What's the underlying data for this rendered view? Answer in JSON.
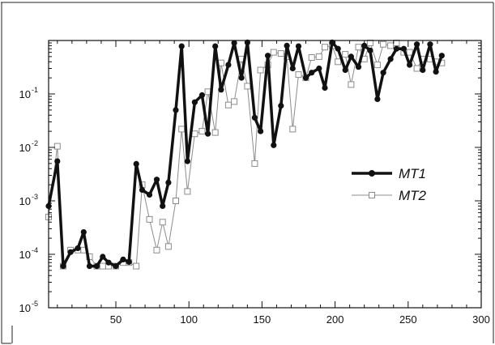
{
  "chart_data": {
    "type": "line",
    "title": "",
    "xlabel": "",
    "ylabel": "",
    "xlim": [
      4,
      300
    ],
    "ylim": [
      1e-05,
      1
    ],
    "yscale": "log",
    "grid": false,
    "legend_position": "center-right",
    "x_ticks": [
      {
        "value": 50,
        "label": "50"
      },
      {
        "value": 100,
        "label": "100"
      },
      {
        "value": 150,
        "label": "150"
      },
      {
        "value": 200,
        "label": "200"
      },
      {
        "value": 250,
        "label": "250"
      },
      {
        "value": 300,
        "label": "300"
      }
    ],
    "y_ticks": [
      {
        "value": 1e-05,
        "base": "10",
        "exp": "-5"
      },
      {
        "value": 0.0001,
        "base": "10",
        "exp": "-4"
      },
      {
        "value": 0.001,
        "base": "10",
        "exp": "-3"
      },
      {
        "value": 0.01,
        "base": "10",
        "exp": "-2"
      },
      {
        "value": 0.1,
        "base": "10",
        "exp": "-1"
      }
    ],
    "series": [
      {
        "name": "MT1",
        "color": "#111111",
        "marker": "filled-circle",
        "points": [
          [
            4,
            0.0008
          ],
          [
            10,
            0.0055
          ],
          [
            14,
            6e-05
          ],
          [
            19,
            0.00011
          ],
          [
            24,
            0.00013
          ],
          [
            28,
            0.00026
          ],
          [
            32,
            6e-05
          ],
          [
            37,
            6e-05
          ],
          [
            41,
            9e-05
          ],
          [
            45,
            7e-05
          ],
          [
            50,
            6e-05
          ],
          [
            55,
            8e-05
          ],
          [
            59,
            7.2e-05
          ],
          [
            64,
            0.0049
          ],
          [
            68,
            0.0016
          ],
          [
            73,
            0.0013
          ],
          [
            78,
            0.0025
          ],
          [
            82,
            0.0008
          ],
          [
            86,
            0.0022
          ],
          [
            91,
            0.05
          ],
          [
            95,
            0.78
          ],
          [
            99,
            0.0055
          ],
          [
            104,
            0.07
          ],
          [
            109,
            0.095
          ],
          [
            113,
            0.018
          ],
          [
            118,
            0.78
          ],
          [
            122,
            0.12
          ],
          [
            127,
            0.35
          ],
          [
            131,
            0.9
          ],
          [
            136,
            0.2
          ],
          [
            140,
            0.92
          ],
          [
            145,
            0.036
          ],
          [
            149,
            0.02
          ],
          [
            154,
            0.52
          ],
          [
            158,
            0.011
          ],
          [
            163,
            0.06
          ],
          [
            167,
            0.8
          ],
          [
            171,
            0.3
          ],
          [
            175,
            0.78
          ],
          [
            180,
            0.2
          ],
          [
            184,
            0.25
          ],
          [
            189,
            0.3
          ],
          [
            193,
            0.13
          ],
          [
            198,
            0.92
          ],
          [
            202,
            0.7
          ],
          [
            207,
            0.28
          ],
          [
            211,
            0.5
          ],
          [
            216,
            0.32
          ],
          [
            220,
            0.8
          ],
          [
            224,
            0.65
          ],
          [
            229,
            0.08
          ],
          [
            233,
            0.25
          ],
          [
            238,
            0.45
          ],
          [
            242,
            0.7
          ],
          [
            247,
            0.7
          ],
          [
            251,
            0.35
          ],
          [
            256,
            0.85
          ],
          [
            260,
            0.28
          ],
          [
            265,
            0.85
          ],
          [
            269,
            0.26
          ],
          [
            273,
            0.52
          ]
        ]
      },
      {
        "name": "MT2",
        "color": "#8c8c8c",
        "marker": "open-square",
        "points": [
          [
            4,
            0.0005
          ],
          [
            10,
            0.0105
          ],
          [
            14,
            6e-05
          ],
          [
            19,
            0.00012
          ],
          [
            24,
            0.00012
          ],
          [
            28,
            0.00012
          ],
          [
            32,
            9e-05
          ],
          [
            37,
            6e-05
          ],
          [
            41,
            6e-05
          ],
          [
            45,
            6e-05
          ],
          [
            50,
            6e-05
          ],
          [
            55,
            7e-05
          ],
          [
            59,
            7e-05
          ],
          [
            64,
            6e-05
          ],
          [
            68,
            0.002
          ],
          [
            73,
            0.00045
          ],
          [
            78,
            0.00012
          ],
          [
            82,
            0.0004
          ],
          [
            86,
            0.00014
          ],
          [
            91,
            0.001
          ],
          [
            95,
            0.022
          ],
          [
            99,
            0.0015
          ],
          [
            104,
            0.018
          ],
          [
            109,
            0.02
          ],
          [
            113,
            0.11
          ],
          [
            118,
            0.019
          ],
          [
            122,
            0.38
          ],
          [
            127,
            0.062
          ],
          [
            131,
            0.072
          ],
          [
            136,
            0.45
          ],
          [
            140,
            0.14
          ],
          [
            145,
            0.005
          ],
          [
            149,
            0.28
          ],
          [
            154,
            0.35
          ],
          [
            158,
            0.6
          ],
          [
            163,
            0.57
          ],
          [
            167,
            0.5
          ],
          [
            171,
            0.022
          ],
          [
            175,
            0.23
          ],
          [
            180,
            0.2
          ],
          [
            184,
            0.48
          ],
          [
            189,
            0.5
          ],
          [
            193,
            0.75
          ],
          [
            198,
            0.8
          ],
          [
            202,
            0.4
          ],
          [
            207,
            0.55
          ],
          [
            211,
            0.15
          ],
          [
            216,
            0.75
          ],
          [
            220,
            0.45
          ],
          [
            224,
            0.9
          ],
          [
            229,
            0.35
          ],
          [
            233,
            0.85
          ],
          [
            238,
            0.8
          ],
          [
            242,
            0.9
          ],
          [
            247,
            0.6
          ],
          [
            251,
            0.6
          ],
          [
            256,
            0.3
          ],
          [
            260,
            0.45
          ],
          [
            265,
            0.45
          ],
          [
            269,
            0.4
          ],
          [
            273,
            0.38
          ]
        ]
      }
    ]
  }
}
